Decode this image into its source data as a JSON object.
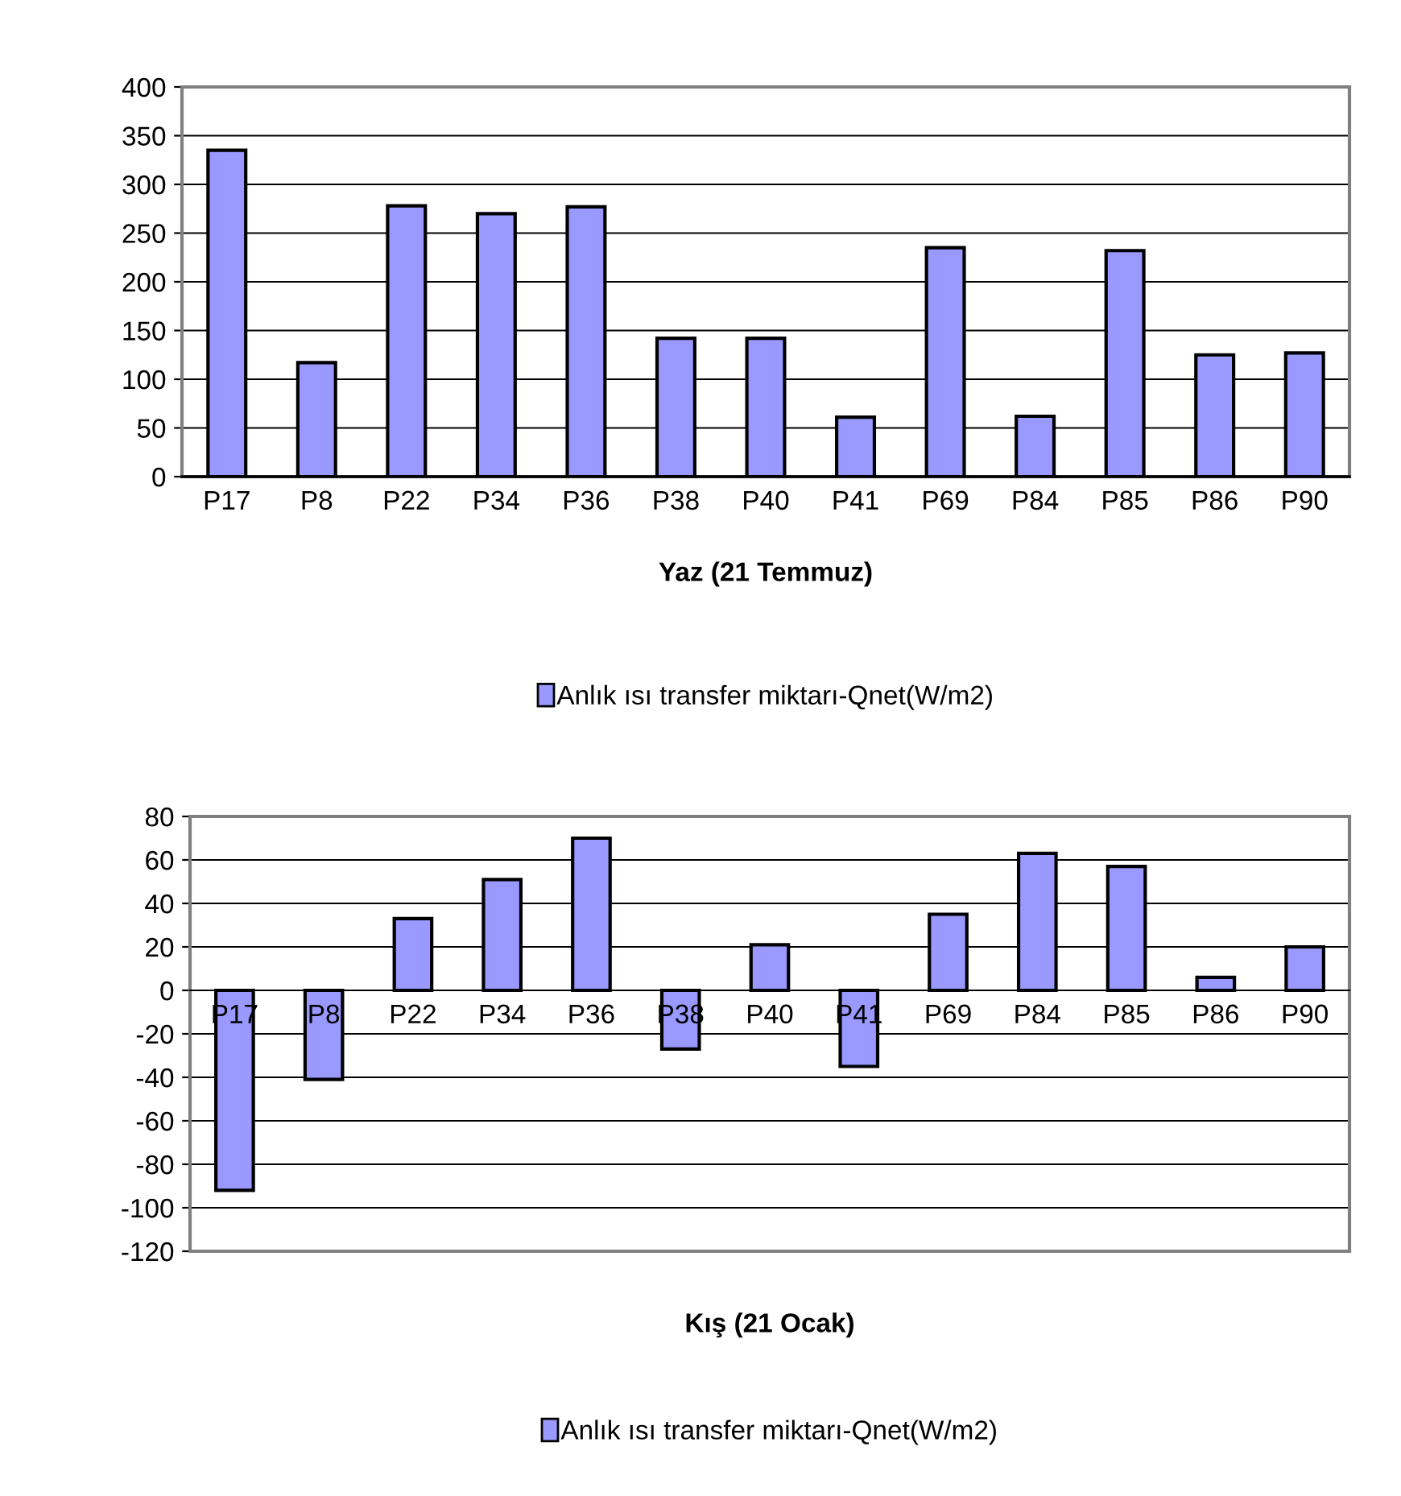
{
  "chart_data": [
    {
      "type": "bar",
      "xlabel": "Yaz (21 Temmuz)",
      "categories": [
        "P17",
        "P8",
        "P22",
        "P34",
        "P36",
        "P38",
        "P40",
        "P41",
        "P69",
        "P84",
        "P85",
        "P86",
        "P90"
      ],
      "series": [
        {
          "name": "Anlık ısı transfer miktarı-Qnet(W/m2)",
          "color": "#9999ff",
          "values": [
            335,
            117,
            278,
            270,
            277,
            142,
            142,
            61,
            235,
            62,
            232,
            125,
            127
          ]
        }
      ],
      "ylim": [
        0,
        400
      ],
      "yticks": [
        0,
        50,
        100,
        150,
        200,
        250,
        300,
        350,
        400
      ],
      "grid": "y",
      "legend": "bottom"
    },
    {
      "type": "bar",
      "xlabel": "Kış (21 Ocak)",
      "categories": [
        "P17",
        "P8",
        "P22",
        "P34",
        "P36",
        "P38",
        "P40",
        "P41",
        "P69",
        "P84",
        "P85",
        "P86",
        "P90"
      ],
      "series": [
        {
          "name": "Anlık ısı transfer miktarı-Qnet(W/m2)",
          "color": "#9999ff",
          "values": [
            -92,
            -41,
            33,
            51,
            70,
            -27,
            21,
            -35,
            35,
            63,
            57,
            6,
            20
          ]
        }
      ],
      "ylim": [
        -120,
        80
      ],
      "yticks": [
        -120,
        -100,
        -80,
        -60,
        -40,
        -20,
        0,
        20,
        40,
        60,
        80
      ],
      "grid": "y",
      "legend": "bottom"
    }
  ]
}
